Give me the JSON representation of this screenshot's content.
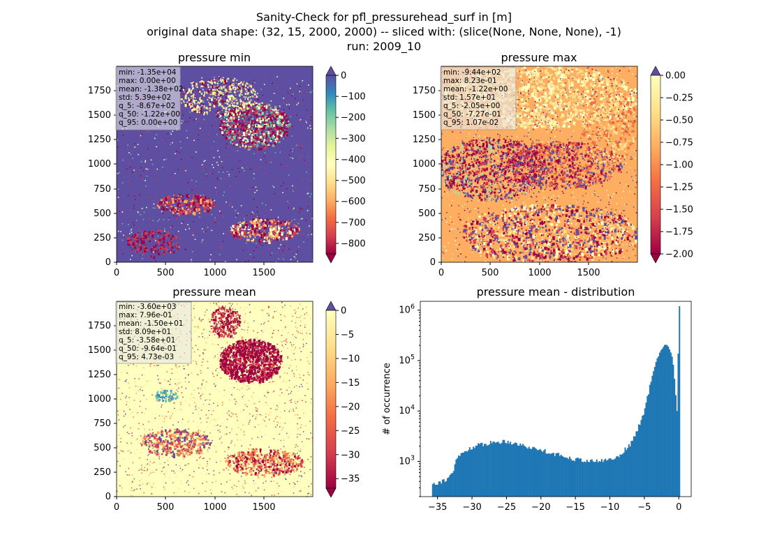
{
  "figure": {
    "title_lines": [
      "Sanity-Check for pfl_pressurehead_surf in [m]",
      "original data shape: (32, 15, 2000, 2000) -- sliced with: (slice(None, None, None), -1)",
      "run: 2009_10"
    ]
  },
  "chart_data": [
    {
      "type": "heatmap",
      "title": "pressure min",
      "colormap": "Spectral",
      "xlim": [
        0,
        2000
      ],
      "ylim": [
        0,
        2000
      ],
      "xticks": [
        "0",
        "500",
        "1000",
        "1500"
      ],
      "yticks": [
        "0",
        "250",
        "500",
        "750",
        "1000",
        "1250",
        "1500",
        "1750"
      ],
      "colorbar": {
        "range": [
          -850,
          0
        ],
        "extend": "both",
        "ticks": [
          "0",
          "−100",
          "−200",
          "−300",
          "−400",
          "−500",
          "−600",
          "−700",
          "−800"
        ]
      },
      "stats": [
        "min: -1.35e+04",
        "max: 0.00e+00",
        "mean: -1.38e+02",
        "std: 5.39e+02",
        "q_5: -8.67e+02",
        "q_50: -1.22e+00",
        "q_95: 0.00e+00"
      ]
    },
    {
      "type": "heatmap",
      "title": "pressure max",
      "colormap": "Spectral",
      "xlim": [
        0,
        2000
      ],
      "ylim": [
        0,
        2000
      ],
      "xticks": [
        "0",
        "500",
        "1000",
        "1500"
      ],
      "yticks": [
        "0",
        "250",
        "500",
        "750",
        "1000",
        "1250",
        "1500",
        "1750"
      ],
      "colorbar": {
        "range": [
          -2.0,
          0.0
        ],
        "extend": "both",
        "ticks": [
          "0.00",
          "−0.25",
          "−0.50",
          "−0.75",
          "−1.00",
          "−1.25",
          "−1.50",
          "−1.75",
          "−2.00"
        ]
      },
      "stats": [
        "min: -9.44e+02",
        "max: 8.23e-01",
        "mean: -1.22e+00",
        "std: 1.57e+01",
        "q_5: -2.05e+00",
        "q_50: -7.27e-01",
        "q_95: 1.07e-02"
      ]
    },
    {
      "type": "heatmap",
      "title": "pressure mean",
      "colormap": "Spectral",
      "xlim": [
        0,
        2000
      ],
      "ylim": [
        0,
        2000
      ],
      "xticks": [
        "0",
        "500",
        "1000",
        "1500"
      ],
      "yticks": [
        "0",
        "250",
        "500",
        "750",
        "1000",
        "1250",
        "1500",
        "1750"
      ],
      "colorbar": {
        "range": [
          -37,
          0
        ],
        "extend": "both",
        "ticks": [
          "0",
          "−5",
          "−10",
          "−15",
          "−20",
          "−25",
          "−30",
          "−35"
        ]
      },
      "stats": [
        "min: -3.60e+03",
        "max: 7.96e-01",
        "mean: -1.50e+01",
        "std: 8.09e+01",
        "q_5: -3.58e+01",
        "q_50: -9.64e-01",
        "q_95: 4.73e-03"
      ]
    },
    {
      "type": "bar",
      "title": "pressure mean - distribution",
      "ylabel": "# of occurrence",
      "yscale": "log",
      "xlim": [
        -37.5,
        1.8
      ],
      "ylim": [
        200,
        1500000
      ],
      "xticks": [
        "−35",
        "−30",
        "−25",
        "−20",
        "−15",
        "−10",
        "−5",
        "0"
      ],
      "yticks": [
        "10^3",
        "10^4",
        "10^5",
        "10^6"
      ],
      "bar_color": "#1f77b4",
      "bins": {
        "start": -35.8,
        "width": 0.179
      },
      "profile_x": [
        -35.8,
        -35.0,
        -34.0,
        -33.0,
        -32.6,
        -32.4,
        -31.0,
        -30.0,
        -29.0,
        -28.0,
        -27.0,
        -26.0,
        -25.0,
        -24.0,
        -23.0,
        -22.0,
        -21.0,
        -20.0,
        -19.0,
        -18.0,
        -17.0,
        -16.0,
        -15.0,
        -14.0,
        -13.0,
        -12.0,
        -11.0,
        -10.0,
        -9.0,
        -8.0,
        -7.0,
        -6.0,
        -5.0,
        -4.0,
        -3.0,
        -2.0,
        -1.6,
        -1.2,
        -0.9,
        -0.7,
        -0.5,
        -0.3,
        -0.15,
        -0.05
      ],
      "profile_y": [
        370,
        380,
        420,
        530,
        640,
        1100,
        1600,
        1900,
        2100,
        2250,
        2350,
        2450,
        2500,
        2350,
        2150,
        1950,
        1800,
        1700,
        1550,
        1400,
        1300,
        1200,
        1100,
        1080,
        1000,
        1000,
        1050,
        1100,
        1200,
        1600,
        2200,
        4200,
        10000,
        40000,
        130000,
        210000,
        200000,
        150000,
        110000,
        60000,
        25000,
        12000,
        5000,
        1200000
      ]
    }
  ]
}
